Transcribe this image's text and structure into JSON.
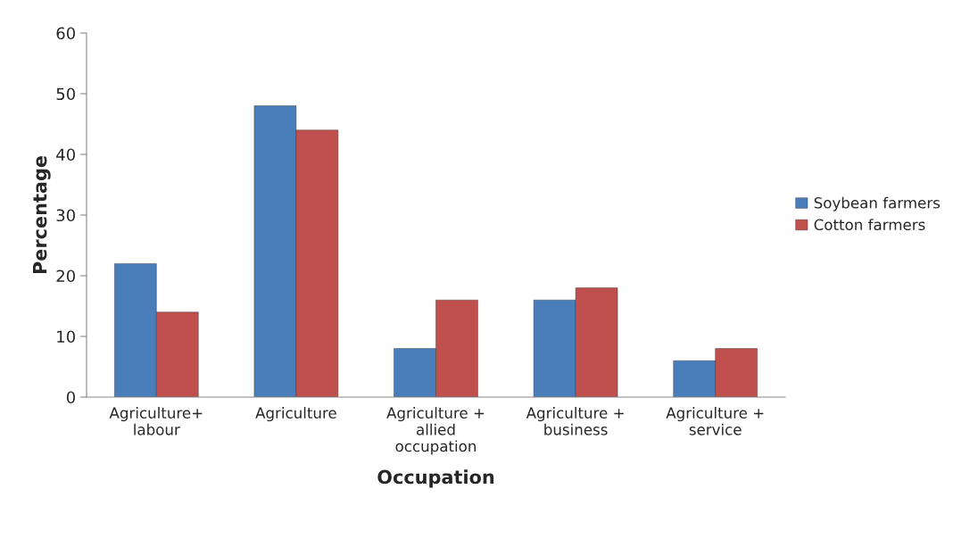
{
  "chart_data": {
    "type": "bar",
    "xlabel": "Occupation",
    "ylabel": "Percentage",
    "categories": [
      "Agriculture+\nlabour",
      "Agriculture",
      "Agriculture +\nallied\noccupation",
      "Agriculture +\nbusiness",
      "Agriculture +\nservice"
    ],
    "series": [
      {
        "name": "Soybean farmers",
        "color": "#4a7ebb",
        "values": [
          22,
          48,
          8,
          16,
          6
        ]
      },
      {
        "name": "Cotton farmers",
        "color": "#c0504d",
        "values": [
          14,
          44,
          16,
          18,
          8
        ]
      }
    ],
    "ylim": [
      0,
      60
    ],
    "yticks": [
      0,
      10,
      20,
      30,
      40,
      50,
      60
    ],
    "grid": false,
    "legend": "right"
  }
}
